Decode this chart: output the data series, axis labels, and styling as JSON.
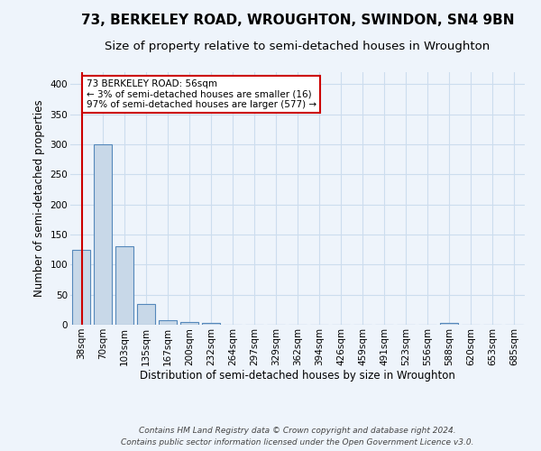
{
  "title1": "73, BERKELEY ROAD, WROUGHTON, SWINDON, SN4 9BN",
  "title2": "Size of property relative to semi-detached houses in Wroughton",
  "xlabel": "Distribution of semi-detached houses by size in Wroughton",
  "ylabel": "Number of semi-detached properties",
  "bin_labels": [
    "38sqm",
    "70sqm",
    "103sqm",
    "135sqm",
    "167sqm",
    "200sqm",
    "232sqm",
    "264sqm",
    "297sqm",
    "329sqm",
    "362sqm",
    "394sqm",
    "426sqm",
    "459sqm",
    "491sqm",
    "523sqm",
    "556sqm",
    "588sqm",
    "620sqm",
    "653sqm",
    "685sqm"
  ],
  "bar_heights": [
    125,
    300,
    130,
    35,
    8,
    5,
    3,
    0,
    0,
    0,
    0,
    0,
    0,
    0,
    0,
    0,
    0,
    3,
    0,
    0,
    0
  ],
  "bar_color": "#c8d8e8",
  "bar_edge_color": "#5588bb",
  "bar_edge_width": 0.8,
  "annotation_line1": "73 BERKELEY ROAD: 56sqm",
  "annotation_line2": "← 3% of semi-detached houses are smaller (16)",
  "annotation_line3": "97% of semi-detached houses are larger (577) →",
  "annotation_box_color": "#ffffff",
  "annotation_border_color": "#cc0000",
  "red_line_color": "#cc0000",
  "ylim": [
    0,
    420
  ],
  "yticks": [
    0,
    50,
    100,
    150,
    200,
    250,
    300,
    350,
    400
  ],
  "grid_color": "#ccddee",
  "background_color": "#eef4fb",
  "footer1": "Contains HM Land Registry data © Crown copyright and database right 2024.",
  "footer2": "Contains public sector information licensed under the Open Government Licence v3.0.",
  "title1_fontsize": 11,
  "title2_fontsize": 9.5,
  "xlabel_fontsize": 8.5,
  "ylabel_fontsize": 8.5,
  "tick_fontsize": 7.5,
  "footer_fontsize": 6.5,
  "annot_fontsize": 7.5
}
